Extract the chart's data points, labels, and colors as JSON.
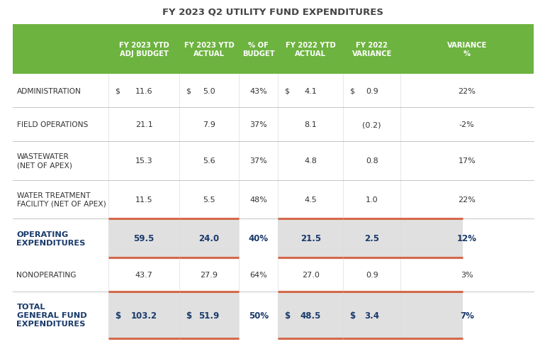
{
  "title": "FY 2023 Q2 UTILITY FUND EXPENDITURES",
  "header_bg": "#6db33f",
  "header_text_color": "#ffffff",
  "header_labels": [
    "FY 2023 YTD\nADJ BUDGET",
    "FY 2023 YTD\nACTUAL",
    "% OF\nBUDGET",
    "FY 2022 YTD\nACTUAL",
    "FY 2022\nVARIANCE",
    "VARIANCE\n%"
  ],
  "row_label_col": "#333333",
  "subtotal_text_color": "#1a3a6b",
  "subtotal_bg": "#e0e0e0",
  "orange_line_color": "#d4694a",
  "rows": [
    {
      "label": "ADMINISTRATION",
      "label_lines": 1,
      "dollar1": true,
      "col1": "11.6",
      "dollar2": true,
      "col2": "5.0",
      "col3": "43%",
      "dollar3": true,
      "col4": "4.1",
      "dollar4": true,
      "col5": "0.9",
      "col6": "22%",
      "is_subtotal": false,
      "has_orange_line_above": false
    },
    {
      "label": "FIELD OPERATIONS",
      "label_lines": 1,
      "dollar1": false,
      "col1": "21.1",
      "dollar2": false,
      "col2": "7.9",
      "col3": "37%",
      "dollar3": false,
      "col4": "8.1",
      "dollar4": false,
      "col5": "(0.2)",
      "col6": "-2%",
      "is_subtotal": false,
      "has_orange_line_above": false
    },
    {
      "label": "WASTEWATER\n(NET OF APEX)",
      "label_lines": 2,
      "dollar1": false,
      "col1": "15.3",
      "dollar2": false,
      "col2": "5.6",
      "col3": "37%",
      "dollar3": false,
      "col4": "4.8",
      "dollar4": false,
      "col5": "0.8",
      "col6": "17%",
      "is_subtotal": false,
      "has_orange_line_above": false
    },
    {
      "label": "WATER TREATMENT\nFACILITY (NET OF APEX)",
      "label_lines": 2,
      "dollar1": false,
      "col1": "11.5",
      "dollar2": false,
      "col2": "5.5",
      "col3": "48%",
      "dollar3": false,
      "col4": "4.5",
      "dollar4": false,
      "col5": "1.0",
      "col6": "22%",
      "is_subtotal": false,
      "has_orange_line_above": false
    },
    {
      "label": "OPERATING\nEXPENDITURES",
      "label_lines": 2,
      "dollar1": false,
      "col1": "59.5",
      "dollar2": false,
      "col2": "24.0",
      "col3": "40%",
      "dollar3": false,
      "col4": "21.5",
      "dollar4": false,
      "col5": "2.5",
      "col6": "12%",
      "is_subtotal": true,
      "has_orange_line_above": true
    },
    {
      "label": "NONOPERATING",
      "label_lines": 1,
      "dollar1": false,
      "col1": "43.7",
      "dollar2": false,
      "col2": "27.9",
      "col3": "64%",
      "dollar3": false,
      "col4": "27.0",
      "dollar4": false,
      "col5": "0.9",
      "col6": "3%",
      "is_subtotal": false,
      "has_orange_line_above": false
    },
    {
      "label": "TOTAL\nGENERAL FUND\nEXPENDITURES",
      "label_lines": 3,
      "dollar1": true,
      "col1": "103.2",
      "dollar2": true,
      "col2": "51.9",
      "col3": "50%",
      "dollar3": true,
      "col4": "48.5",
      "dollar4": true,
      "col5": "3.4",
      "col6": "7%",
      "is_subtotal": true,
      "has_orange_line_above": true
    }
  ],
  "bg_color": "#ffffff",
  "grid_line_color": "#bbbbbb",
  "title_fontsize": 9.5,
  "header_fontsize": 7.2,
  "cell_fontsize": 8.0,
  "subtotal_fontsize": 8.5,
  "col_boundaries": [
    0.0,
    0.185,
    0.32,
    0.435,
    0.51,
    0.635,
    0.745,
    0.865,
    1.0
  ],
  "shade_col_ranges": [
    [
      1,
      2
    ],
    [
      2,
      3
    ],
    [
      4,
      5
    ],
    [
      5,
      7
    ]
  ],
  "orange_line_col_ranges": [
    [
      1,
      2
    ],
    [
      2,
      3
    ],
    [
      4,
      5
    ],
    [
      5,
      7
    ]
  ]
}
